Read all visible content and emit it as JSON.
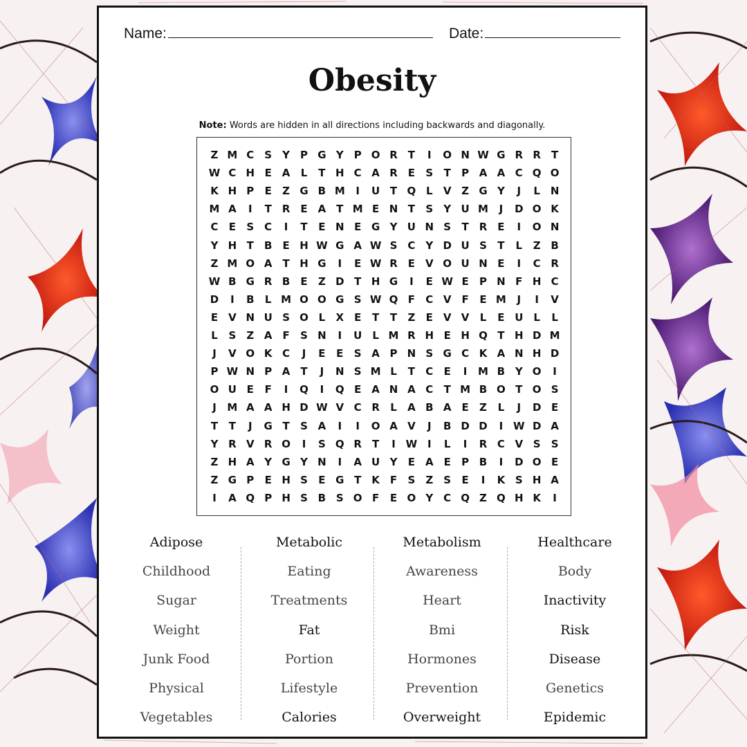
{
  "header": {
    "name_label": "Name:",
    "date_label": "Date:"
  },
  "title": "Obesity",
  "note": {
    "bold": "Note:",
    "text": " Words are hidden in all directions including backwards and diagonally."
  },
  "grid_rows": [
    "ZMCSYPGYPORTIONWGRRT",
    "WCHEALTHCARESTPAACQO",
    "KHPEZGBMIUTQLVZGYJLN",
    "MAITREATMENTSYUMJDOK",
    "CESCITENEGYUNSTREION",
    "YHTBEHWGAWSCYDUSTLZB",
    "ZMOATHGIEWREVOUNEICR",
    "WBGRBEZDTHGIEWEPNFHC",
    "DIBLMOOGSWQFCVFEMJIV",
    "EVNUSOLXETTZEVVLEULL",
    "LSZAFSNIULMRHEHQTHDM",
    "JVOKCJEESAPNSGCKANHD",
    "PWNPATJNSMLTCEIMBYOI",
    "OUEFIQIQEANACTMBOTOS",
    "JMAAHDWVCRLABAEZLJDE",
    "TTJGTSAIIOAVJBDDIWDA",
    "YRVROISQRTIWILIRCVSS",
    "ZHAYGYNIAUYEAEPBIDOE",
    "ZGPEHSEGTKFSZSEIKSHA",
    "IAQPHSBSOFEOYCQZQHKI"
  ],
  "word_columns": [
    [
      "Adipose",
      "Childhood",
      "Sugar",
      "Weight",
      "Junk Food",
      "Physical",
      "Vegetables"
    ],
    [
      "Metabolic",
      "Eating",
      "Treatments",
      "Fat",
      "Portion",
      "Lifestyle",
      "Calories"
    ],
    [
      "Metabolism",
      "Awareness",
      "Heart",
      "Bmi",
      "Hormones",
      "Prevention",
      "Overweight"
    ],
    [
      "Healthcare",
      "Body",
      "Inactivity",
      "Risk",
      "Disease",
      "Genetics",
      "Epidemic"
    ]
  ],
  "dark_words": [
    "Adipose",
    "Metabolic",
    "Metabolism",
    "Healthcare",
    "Fat",
    "Inactivity",
    "Risk",
    "Disease",
    "Calories",
    "Overweight",
    "Epidemic"
  ],
  "colors": {
    "ink": "#111111",
    "muted_word": "#444444",
    "background_red": "#e8321e",
    "background_blue": "#3a3fc8",
    "background_purple": "#6a2a8a"
  }
}
